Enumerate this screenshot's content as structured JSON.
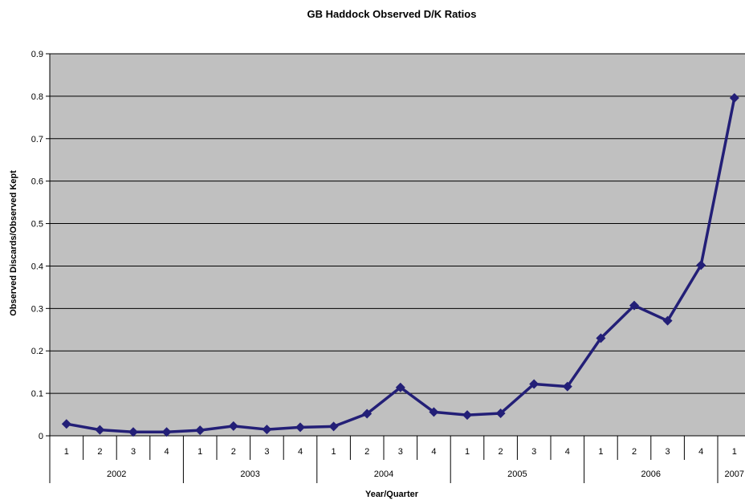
{
  "chart_data": {
    "type": "line",
    "title": "GB Haddock Observed D/K Ratios",
    "xlabel": "Year/Quarter",
    "ylabel": "Observed Discards/Observed Kept",
    "ylim": [
      0,
      0.9
    ],
    "yticks": [
      "0",
      "0.1",
      "0.2",
      "0.3",
      "0.4",
      "0.5",
      "0.6",
      "0.7",
      "0.8",
      "0.9"
    ],
    "categories": [
      {
        "year": "2002",
        "quarter": "1"
      },
      {
        "year": "2002",
        "quarter": "2"
      },
      {
        "year": "2002",
        "quarter": "3"
      },
      {
        "year": "2002",
        "quarter": "4"
      },
      {
        "year": "2003",
        "quarter": "1"
      },
      {
        "year": "2003",
        "quarter": "2"
      },
      {
        "year": "2003",
        "quarter": "3"
      },
      {
        "year": "2003",
        "quarter": "4"
      },
      {
        "year": "2004",
        "quarter": "1"
      },
      {
        "year": "2004",
        "quarter": "2"
      },
      {
        "year": "2004",
        "quarter": "3"
      },
      {
        "year": "2004",
        "quarter": "4"
      },
      {
        "year": "2005",
        "quarter": "1"
      },
      {
        "year": "2005",
        "quarter": "2"
      },
      {
        "year": "2005",
        "quarter": "3"
      },
      {
        "year": "2005",
        "quarter": "4"
      },
      {
        "year": "2006",
        "quarter": "1"
      },
      {
        "year": "2006",
        "quarter": "2"
      },
      {
        "year": "2006",
        "quarter": "3"
      },
      {
        "year": "2006",
        "quarter": "4"
      },
      {
        "year": "2007",
        "quarter": "1"
      }
    ],
    "year_labels": [
      "2002",
      "2003",
      "2004",
      "2005",
      "2006",
      "2007"
    ],
    "series": [
      {
        "values": [
          0.028,
          0.014,
          0.009,
          0.009,
          0.013,
          0.023,
          0.015,
          0.02,
          0.022,
          0.052,
          0.114,
          0.056,
          0.049,
          0.053,
          0.122,
          0.116,
          0.23,
          0.307,
          0.271,
          0.402,
          0.796
        ],
        "color": "#231f77"
      }
    ],
    "plot_background": "#c0c0c0",
    "grid": true,
    "legend": "none",
    "marker": "diamond"
  }
}
